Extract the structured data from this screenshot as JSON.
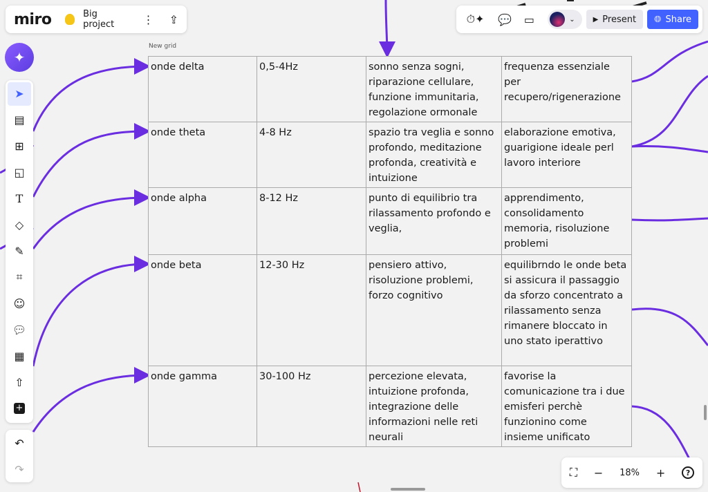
{
  "header": {
    "logo": "miro",
    "board_title": "Big project",
    "present_label": "Present",
    "share_label": "Share"
  },
  "colors": {
    "accent": "#4262ff",
    "connector": "#6a2ee0",
    "ai": "#7b4cff"
  },
  "grid": {
    "label": "New grid",
    "rows": [
      [
        "onde delta",
        "0,5-4Hz",
        "sonno senza sogni, riparazione cellulare, funzione immunitaria, regolazione ormonale",
        "frequenza essenziale per recupero/rigenerazione"
      ],
      [
        "onde theta",
        "4-8 Hz",
        "spazio tra veglia e sonno profondo, meditazione profonda, creatività e intuizione",
        "elaborazione emotiva, guarigione ideale perl lavoro interiore"
      ],
      [
        "onde alpha",
        "8-12 Hz",
        "punto di equilibrio tra rilassamento profondo e veglia,",
        "apprendimento, consolidamento memoria, risoluzione problemi"
      ],
      [
        "onde beta",
        "12-30 Hz",
        "pensiero attivo, risoluzione problemi, forzo cognitivo",
        "equilibrndo le onde beta si assicura il passaggio da sforzo concentrato a rilassamento senza rimanere bloccato in uno stato iperattivo"
      ],
      [
        "onde gamma",
        "30-100 Hz",
        "percezione elevata, intuizione profonda, integrazione delle informazioni nelle reti neurali",
        "favorise la comunicazione tra i due emisferi perchè funzionino come insieme unificato"
      ]
    ]
  },
  "toolbar": {
    "tools": [
      "select",
      "templates",
      "frame-layout",
      "sticky-note",
      "text",
      "shapes",
      "pen",
      "frame",
      "stickers",
      "comment",
      "table",
      "upload",
      "more"
    ],
    "active": "select"
  },
  "zoom": {
    "level": "18%"
  }
}
